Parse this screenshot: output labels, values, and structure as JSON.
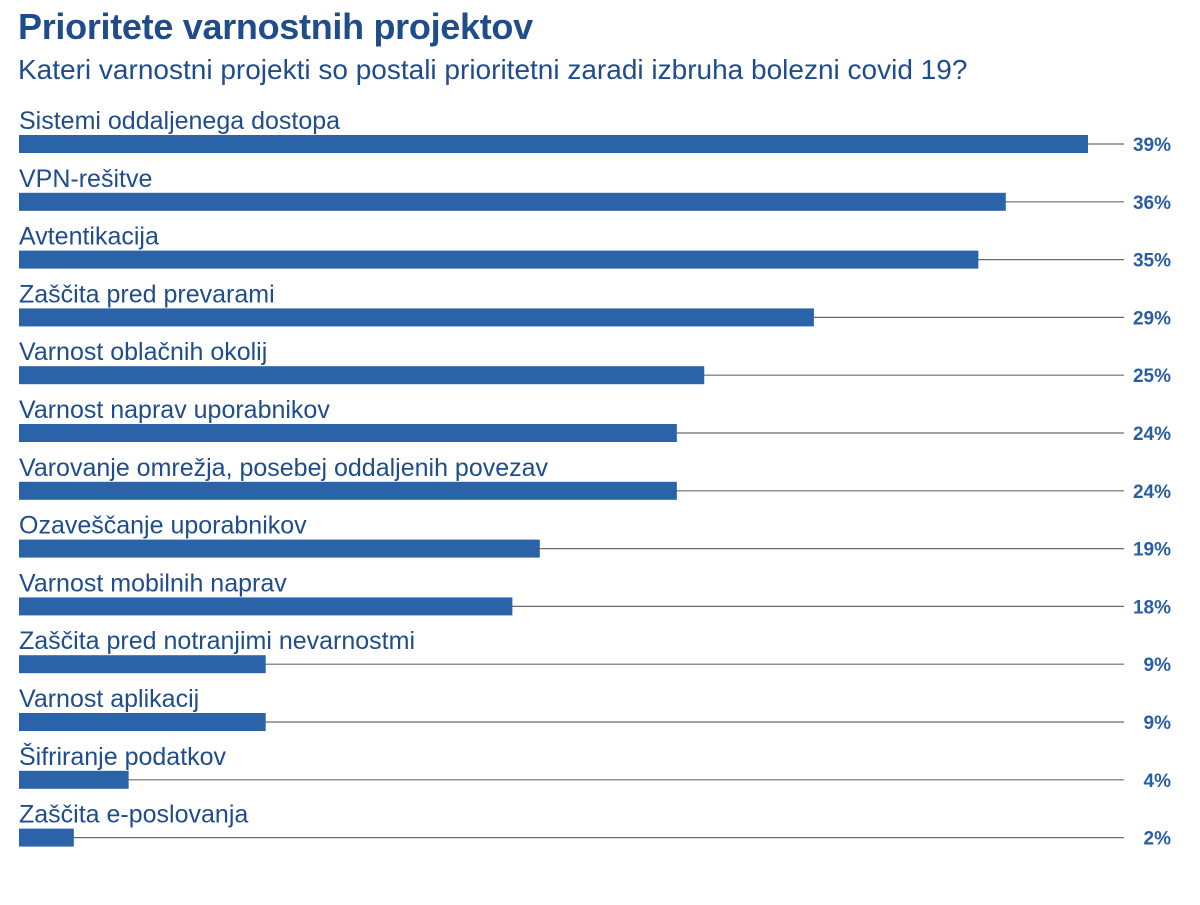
{
  "title": "Prioritete varnostnih projektov",
  "subtitle": "Kateri varnostni projekti so postali prioritetni zaradi izbruha bolezni covid 19?",
  "colors": {
    "bar": "#2b63a8",
    "text": "#1f4d8c",
    "value_text": "#2a5ea3",
    "guide_line": "#6b6b6b"
  },
  "chart_data": {
    "type": "bar",
    "orientation": "horizontal",
    "categories": [
      "Sistemi oddaljenega dostopa",
      "VPN-rešitve",
      "Avtentikacija",
      "Zaščita pred prevarami",
      "Varnost oblačnih okolij",
      "Varnost naprav uporabnikov",
      "Varovanje omrežja, posebej oddaljenih povezav",
      "Ozaveščanje uporabnikov",
      "Varnost mobilnih naprav",
      "Zaščita pred notranjimi nevarnostmi",
      "Varnost aplikacij",
      "Šifriranje podatkov",
      "Zaščita e-poslovanja"
    ],
    "values": [
      39,
      36,
      35,
      29,
      25,
      24,
      24,
      19,
      18,
      9,
      9,
      4,
      2
    ],
    "value_labels": [
      "39%",
      "36%",
      "35%",
      "29%",
      "25%",
      "24%",
      "24%",
      "19%",
      "18%",
      "9%",
      "9%",
      "4%",
      "2%"
    ],
    "unit": "%",
    "xlim": [
      0,
      39
    ],
    "grid": false,
    "legend": "none"
  }
}
